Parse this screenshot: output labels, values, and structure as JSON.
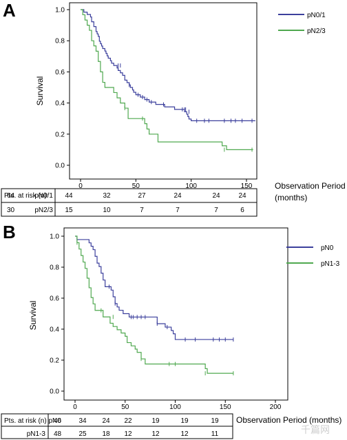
{
  "chart_data": [
    {
      "panel_label": "A",
      "type": "line",
      "ylabel": "Survival",
      "xlabel": "Observation Period",
      "xlabel_unit": "(months)",
      "ylim": [
        0.0,
        1.0
      ],
      "xlim": [
        -8,
        162
      ],
      "x_ticks": [
        "0",
        "50",
        "100",
        "150"
      ],
      "y_ticks": [
        "0.0",
        "0.2",
        "0.4",
        "0.6",
        "0.8",
        "1.0"
      ],
      "grid": false,
      "legend_position": "top-right",
      "series": [
        {
          "name": "pN0/1",
          "color": "#3b3f9c",
          "x": [
            0,
            3,
            6,
            9,
            10,
            12,
            14,
            15,
            16,
            17,
            18,
            19,
            20,
            22,
            23,
            24,
            25,
            27,
            28,
            30,
            32,
            33,
            34,
            36,
            38,
            40,
            42,
            44,
            45,
            47,
            48,
            50,
            52,
            54,
            56,
            58,
            60,
            62,
            65,
            68,
            72,
            76,
            80,
            85,
            88,
            92,
            94,
            96,
            97,
            98,
            100,
            158
          ],
          "y": [
            1.0,
            0.984,
            0.969,
            0.953,
            0.922,
            0.891,
            0.859,
            0.844,
            0.828,
            0.797,
            0.781,
            0.766,
            0.75,
            0.734,
            0.719,
            0.703,
            0.688,
            0.672,
            0.656,
            0.641,
            0.641,
            0.625,
            0.609,
            0.594,
            0.578,
            0.547,
            0.531,
            0.516,
            0.5,
            0.484,
            0.469,
            0.453,
            0.453,
            0.438,
            0.438,
            0.422,
            0.422,
            0.406,
            0.406,
            0.391,
            0.391,
            0.375,
            0.375,
            0.359,
            0.359,
            0.359,
            0.344,
            0.328,
            0.313,
            0.297,
            0.286,
            0.286
          ],
          "censor_x": [
            34,
            36,
            44,
            52,
            56,
            60,
            64,
            75,
            92,
            94,
            95,
            98,
            105,
            112,
            116,
            130,
            136,
            140,
            146,
            155
          ],
          "censor_y": [
            0.641,
            0.641,
            0.516,
            0.453,
            0.438,
            0.422,
            0.406,
            0.391,
            0.359,
            0.359,
            0.359,
            0.344,
            0.286,
            0.286,
            0.286,
            0.286,
            0.286,
            0.286,
            0.286,
            0.286
          ]
        },
        {
          "name": "pN2/3",
          "color": "#4fa84f",
          "x": [
            0,
            2,
            4,
            6,
            8,
            10,
            12,
            14,
            16,
            18,
            20,
            22,
            27,
            30,
            33,
            36,
            40,
            43,
            48,
            55,
            58,
            60,
            62,
            66,
            70,
            90,
            128,
            132,
            156
          ],
          "y": [
            1.0,
            0.967,
            0.933,
            0.9,
            0.867,
            0.8,
            0.767,
            0.733,
            0.667,
            0.6,
            0.533,
            0.5,
            0.5,
            0.467,
            0.433,
            0.4,
            0.367,
            0.3,
            0.3,
            0.3,
            0.267,
            0.233,
            0.2,
            0.2,
            0.15,
            0.15,
            0.125,
            0.1,
            0.1
          ],
          "censor_x": [
            40,
            56,
            130,
            155
          ],
          "censor_y": [
            0.367,
            0.3,
            0.1,
            0.1
          ]
        }
      ],
      "risk_table": {
        "header": "Pts. at risk (n):",
        "groups": [
          {
            "label": "pN0/1",
            "values": [
              "64",
              "44",
              "32",
              "27",
              "24",
              "24",
              "24"
            ]
          },
          {
            "label": "pN2/3",
            "values": [
              "30",
              "15",
              "10",
              "7",
              "7",
              "7",
              "6"
            ]
          }
        ],
        "at_x": [
          0,
          25,
          50,
          75,
          100,
          125,
          150
        ]
      }
    },
    {
      "panel_label": "B",
      "type": "line",
      "ylabel": "Survival",
      "xlabel": "Observation Period (months)",
      "ylim": [
        0.0,
        1.0
      ],
      "xlim": [
        -8,
        210
      ],
      "x_ticks": [
        "0",
        "50",
        "100",
        "150",
        "200"
      ],
      "y_ticks": [
        "0.0",
        "0.2",
        "0.4",
        "0.6",
        "0.8",
        "1.0"
      ],
      "grid": false,
      "legend_position": "top-right",
      "series": [
        {
          "name": "pN0",
          "color": "#3b3f9c",
          "x": [
            0,
            2,
            12,
            14,
            16,
            18,
            20,
            22,
            24,
            26,
            28,
            30,
            34,
            36,
            38,
            40,
            42,
            44,
            46,
            48,
            52,
            54,
            56,
            58,
            62,
            66,
            70,
            82,
            90,
            96,
            98,
            100,
            158
          ],
          "y": [
            1.0,
            0.978,
            0.978,
            0.957,
            0.935,
            0.913,
            0.87,
            0.826,
            0.804,
            0.761,
            0.717,
            0.674,
            0.674,
            0.652,
            0.609,
            0.565,
            0.543,
            0.522,
            0.522,
            0.5,
            0.5,
            0.478,
            0.478,
            0.478,
            0.478,
            0.478,
            0.478,
            0.435,
            0.413,
            0.391,
            0.37,
            0.333,
            0.333
          ],
          "censor_x": [
            2,
            34,
            40,
            56,
            58,
            62,
            66,
            70,
            82,
            92,
            110,
            120,
            138,
            144,
            150,
            158
          ],
          "censor_y": [
            0.978,
            0.674,
            0.565,
            0.478,
            0.478,
            0.478,
            0.478,
            0.478,
            0.435,
            0.413,
            0.333,
            0.333,
            0.333,
            0.333,
            0.333,
            0.333
          ],
          "_note_exclude": true
        },
        {
          "name": "pN1-3",
          "color": "#4fa84f",
          "x": [
            0,
            2,
            4,
            6,
            8,
            10,
            12,
            14,
            16,
            18,
            20,
            22,
            26,
            28,
            32,
            35,
            38,
            42,
            46,
            50,
            52,
            56,
            60,
            62,
            66,
            70,
            94,
            130,
            132,
            158
          ],
          "y": [
            1.0,
            0.958,
            0.917,
            0.875,
            0.833,
            0.792,
            0.729,
            0.667,
            0.604,
            0.563,
            0.521,
            0.521,
            0.521,
            0.479,
            0.479,
            0.438,
            0.417,
            0.396,
            0.375,
            0.354,
            0.313,
            0.292,
            0.271,
            0.25,
            0.208,
            0.175,
            0.175,
            0.145,
            0.115,
            0.115
          ],
          "censor_x": [
            2,
            26,
            38,
            66,
            94,
            100,
            130,
            158
          ],
          "censor_y": [
            0.958,
            0.521,
            0.479,
            0.208,
            0.175,
            0.175,
            0.115,
            0.115
          ]
        }
      ],
      "risk_table": {
        "header": "Pts. at risk (n) pN0",
        "groups": [
          {
            "label": "pN0",
            "values": [
              "46",
              "34",
              "24",
              "22",
              "19",
              "19",
              "19"
            ]
          },
          {
            "label": "pN1-3",
            "values": [
              "48",
              "25",
              "18",
              "12",
              "12",
              "12",
              "11"
            ]
          }
        ],
        "at_x": [
          0,
          25,
          50,
          75,
          100,
          125,
          150
        ]
      }
    }
  ],
  "watermark": "千篇网"
}
